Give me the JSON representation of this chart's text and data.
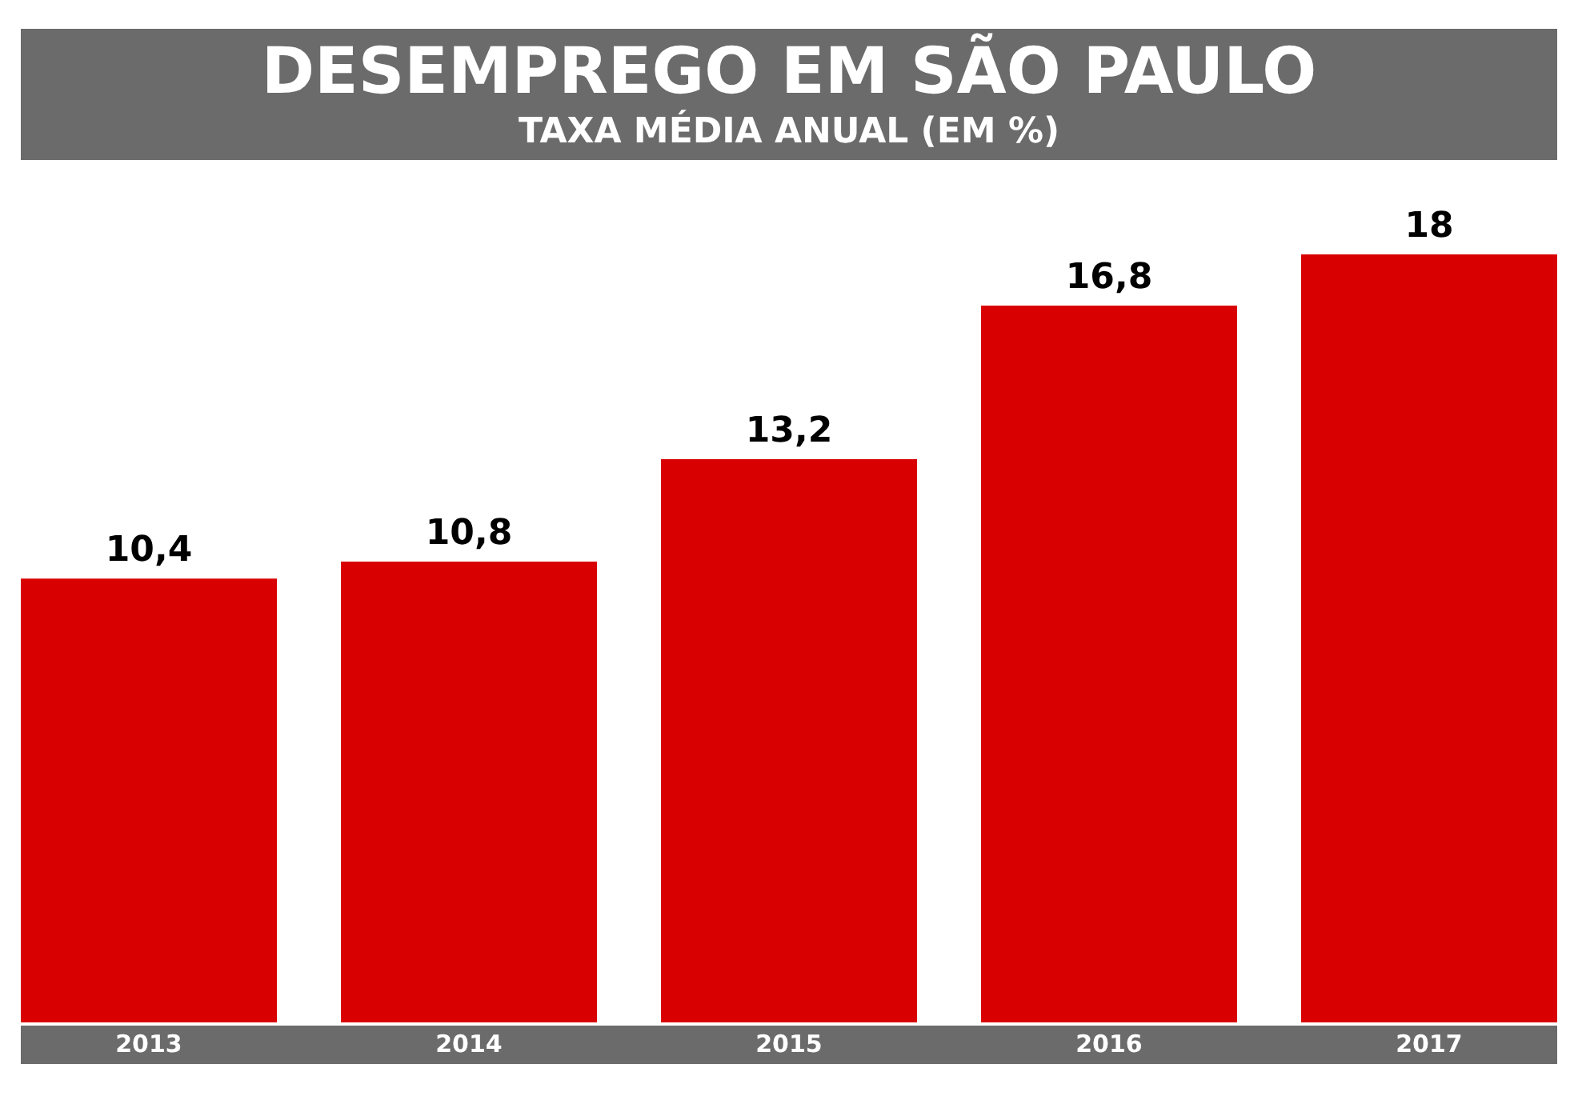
{
  "chart_data": {
    "type": "bar",
    "title": "DESEMPREGO EM SÃO PAULO",
    "subtitle": "TAXA MÉDIA ANUAL (EM %)",
    "categories": [
      "2013",
      "2014",
      "2015",
      "2016",
      "2017"
    ],
    "values": [
      10.4,
      10.8,
      13.2,
      16.8,
      18
    ],
    "value_labels": [
      "10,4",
      "10,8",
      "13,2",
      "16,8",
      "18"
    ],
    "color": "#d80000",
    "grid": false
  }
}
